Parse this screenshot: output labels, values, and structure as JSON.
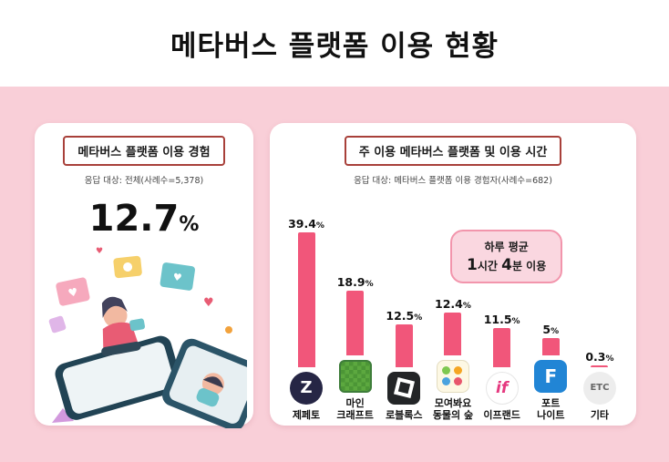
{
  "title": "메타버스 플랫폼 이용 현황",
  "left_panel": {
    "header": "메타버스 플랫폼 이용 경험",
    "subtitle": "응답 대상: 전체(사례수=5,378)",
    "value": "12.7",
    "unit": "%"
  },
  "right_panel": {
    "header": "주 이용 메타버스 플랫폼 및 이용 시간",
    "subtitle": "응답 대상: 메타버스 플랫폼 이용 경험자(사례수=682)",
    "callout": {
      "line1": "하루 평균",
      "line2_parts": [
        {
          "text": "1",
          "em": true
        },
        {
          "text": "시간 ",
          "em": false
        },
        {
          "text": "4",
          "em": true
        },
        {
          "text": "분 이용",
          "em": false
        }
      ]
    }
  },
  "chart_data": {
    "type": "bar",
    "title": "주 이용 메타버스 플랫폼 및 이용 시간",
    "categories": [
      "제페토",
      "마인크래프트",
      "로블록스",
      "모여봐요 동물의 숲",
      "이프랜드",
      "포트나이트",
      "기타"
    ],
    "values": [
      39.4,
      18.9,
      12.5,
      12.4,
      11.5,
      5.0,
      0.3
    ],
    "unit": "%",
    "ylim": [
      0,
      40
    ],
    "legend": null,
    "grid": false,
    "value_labels": [
      "39.4%",
      "18.9%",
      "12.5%",
      "12.4%",
      "11.5%",
      "5.0%",
      "0.3%"
    ],
    "category_display": [
      "제페토",
      "마인\n크래프트",
      "로블록스",
      "모여봐요\n동물의 숲",
      "이프랜드",
      "포트\n나이트",
      "기타"
    ],
    "bar_color": "#f1567a",
    "icons": [
      {
        "name": "zepeto-icon",
        "kind": "zepeto",
        "text": "Z"
      },
      {
        "name": "minecraft-icon",
        "kind": "minecraft",
        "text": ""
      },
      {
        "name": "roblox-icon",
        "kind": "roblox",
        "text": ""
      },
      {
        "name": "animal-crossing-icon",
        "kind": "animal",
        "text": ""
      },
      {
        "name": "ifland-icon",
        "kind": "ifland",
        "text": "if"
      },
      {
        "name": "fortnite-icon",
        "kind": "fortnite",
        "text": "F"
      },
      {
        "name": "etc-icon",
        "kind": "etc",
        "text": "ETC"
      }
    ]
  },
  "colors": {
    "background": "#f9cfd8",
    "bar": "#f1567a",
    "badge_border": "#a8403a",
    "callout_bg": "#fad7e0",
    "callout_border": "#f295ac"
  }
}
